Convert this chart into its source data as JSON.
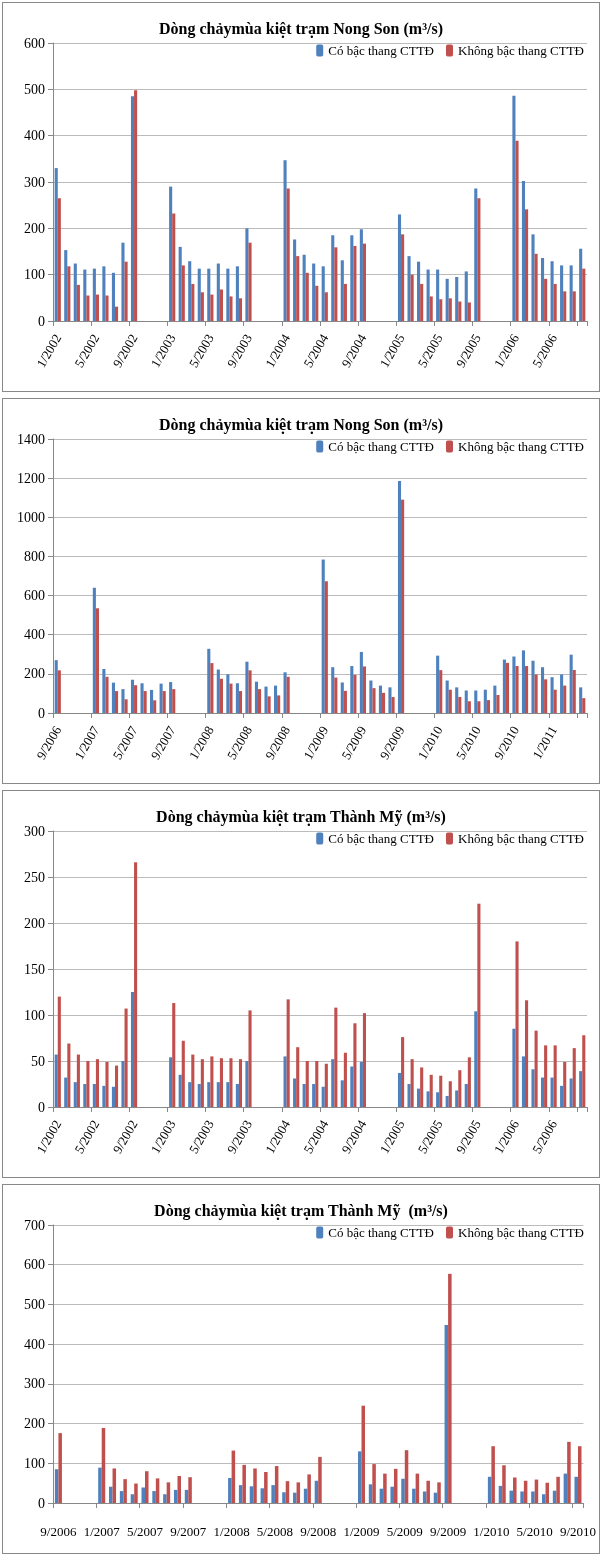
{
  "chart_data": [
    {
      "type": "bar",
      "title": "Dòng chảymùa kiệt trạm Nong Son (m³/s)",
      "legend": "top right",
      "grid": "y",
      "ylim": [
        0,
        600
      ],
      "yticks": [
        0,
        100,
        200,
        300,
        400,
        500,
        600
      ],
      "categories": [
        "1/2002",
        null,
        null,
        null,
        "5/2002",
        null,
        null,
        null,
        "9/2002",
        null,
        null,
        null,
        "1/2003",
        null,
        null,
        null,
        "5/2003",
        null,
        null,
        null,
        "9/2003",
        null,
        null,
        null,
        "1/2004",
        null,
        null,
        null,
        "5/2004",
        null,
        null,
        null,
        "9/2004",
        null,
        null,
        null,
        "1/2005",
        null,
        null,
        null,
        "5/2005",
        null,
        null,
        null,
        "9/2005",
        null,
        null,
        null,
        "1/2006",
        null,
        null,
        null,
        "5/2006",
        null,
        null,
        null
      ],
      "series": [
        {
          "name": "Có bậc thang CTTĐ",
          "color": "#4f81bd",
          "values": [
            330,
            153,
            124,
            111,
            113,
            118,
            104,
            169,
            485,
            null,
            null,
            null,
            290,
            160,
            129,
            113,
            113,
            124,
            113,
            118,
            200,
            null,
            null,
            null,
            347,
            176,
            143,
            124,
            118,
            185,
            131,
            185,
            198,
            null,
            null,
            null,
            230,
            140,
            128,
            111,
            111,
            91,
            95,
            107,
            286,
            null,
            null,
            null,
            486,
            302,
            187,
            136,
            129,
            120,
            120,
            156
          ]
        },
        {
          "name": "Không bậc thang CTTĐ",
          "color": "#c0504d",
          "values": [
            265,
            118,
            78,
            55,
            57,
            55,
            31,
            128,
            498,
            null,
            null,
            null,
            232,
            120,
            80,
            62,
            57,
            68,
            53,
            49,
            169,
            null,
            null,
            null,
            286,
            140,
            104,
            76,
            62,
            159,
            80,
            162,
            167,
            null,
            null,
            null,
            187,
            100,
            80,
            53,
            47,
            49,
            42,
            40,
            265,
            null,
            null,
            null,
            389,
            241,
            145,
            91,
            80,
            64,
            64,
            113
          ]
        }
      ]
    },
    {
      "type": "bar",
      "title": "Dòng chảymùa kiệt trạm Nong Son (m³/s)",
      "legend": "top right",
      "grid": "y",
      "ylim": [
        0,
        1400
      ],
      "yticks": [
        0,
        200,
        400,
        600,
        800,
        1000,
        1200,
        1400
      ],
      "categories": [
        "9/2006",
        null,
        null,
        null,
        "1/2007",
        null,
        null,
        null,
        "5/2007",
        null,
        null,
        null,
        "9/2007",
        null,
        null,
        null,
        "1/2008",
        null,
        null,
        null,
        "5/2008",
        null,
        null,
        null,
        "9/2008",
        null,
        null,
        null,
        "1/2009",
        null,
        null,
        null,
        "5/2009",
        null,
        null,
        null,
        "9/2009",
        null,
        null,
        null,
        "1/2010",
        null,
        null,
        null,
        "5/2010",
        null,
        null,
        null,
        "9/2010",
        null,
        null,
        null,
        "1/2011",
        null,
        null,
        null
      ],
      "series": [
        {
          "name": "Có bậc thang CTTĐ",
          "color": "#4f81bd",
          "values": [
            270,
            null,
            null,
            null,
            640,
            225,
            155,
            122,
            170,
            152,
            118,
            150,
            158,
            null,
            null,
            null,
            328,
            222,
            198,
            152,
            262,
            160,
            135,
            140,
            208,
            null,
            null,
            null,
            784,
            234,
            156,
            240,
            312,
            166,
            140,
            131,
            1185,
            null,
            null,
            null,
            293,
            166,
            131,
            115,
            115,
            119,
            140,
            273,
            289,
            320,
            267,
            234,
            183,
            197,
            298,
            131
          ]
        },
        {
          "name": "Không bậc thang CTTĐ",
          "color": "#c0504d",
          "values": [
            218,
            null,
            null,
            null,
            535,
            185,
            112,
            70,
            142,
            112,
            65,
            112,
            122,
            null,
            null,
            null,
            255,
            175,
            150,
            112,
            218,
            122,
            85,
            90,
            185,
            null,
            null,
            null,
            673,
            181,
            113,
            195,
            238,
            127,
            103,
            82,
            1090,
            null,
            null,
            null,
            219,
            119,
            82,
            60,
            60,
            66,
            92,
            256,
            240,
            240,
            197,
            172,
            119,
            140,
            220,
            76
          ]
        }
      ]
    },
    {
      "type": "bar",
      "title": "Dòng chảymùa kiệt trạm Thành Mỹ (m³/s)",
      "legend": "top right",
      "grid": "y",
      "ylim": [
        0,
        300
      ],
      "yticks": [
        0,
        50,
        100,
        150,
        200,
        250,
        300
      ],
      "categories": [
        "1/2002",
        null,
        null,
        null,
        "5/2002",
        null,
        null,
        null,
        "9/2002",
        null,
        null,
        null,
        "1/2003",
        null,
        null,
        null,
        "5/2003",
        null,
        null,
        null,
        "9/2003",
        null,
        null,
        null,
        "1/2004",
        null,
        null,
        null,
        "5/2004",
        null,
        null,
        null,
        "9/2004",
        null,
        null,
        null,
        "1/2005",
        null,
        null,
        null,
        "5/2005",
        null,
        null,
        null,
        "9/2005",
        null,
        null,
        null,
        "1/2006",
        null,
        null,
        null,
        "5/2006",
        null,
        null,
        null
      ],
      "series": [
        {
          "name": "Có bậc thang CTTĐ",
          "color": "#4f81bd",
          "values": [
            57,
            32,
            27,
            25,
            25,
            23,
            22,
            50,
            125,
            null,
            null,
            null,
            54,
            35,
            27,
            25,
            27,
            27,
            27,
            25,
            50,
            null,
            null,
            null,
            55,
            31,
            25,
            25,
            22,
            52,
            29,
            44,
            49,
            null,
            null,
            null,
            37,
            25,
            20,
            17,
            16,
            12,
            18,
            25,
            104,
            null,
            null,
            null,
            85,
            55,
            41,
            32,
            32,
            23,
            31,
            39
          ]
        },
        {
          "name": "Không bậc thang CTTĐ",
          "color": "#c0504d",
          "values": [
            120,
            69,
            57,
            50,
            52,
            49,
            45,
            107,
            266,
            null,
            null,
            null,
            113,
            72,
            57,
            52,
            55,
            53,
            53,
            52,
            105,
            null,
            null,
            null,
            117,
            65,
            50,
            50,
            47,
            108,
            59,
            91,
            102,
            null,
            null,
            null,
            76,
            52,
            43,
            35,
            34,
            28,
            40,
            54,
            221,
            null,
            null,
            null,
            180,
            116,
            83,
            67,
            67,
            49,
            64,
            78
          ]
        }
      ]
    },
    {
      "type": "bar",
      "title": "Dòng chảymùa kiệt trạm Thành Mỹ  (m³/s)",
      "legend": "top right",
      "grid": "y",
      "ylim": [
        0,
        700
      ],
      "yticks": [
        0,
        100,
        200,
        300,
        400,
        500,
        600,
        700
      ],
      "categories": [
        "9/2006",
        null,
        null,
        null,
        "1/2007",
        null,
        null,
        null,
        "5/2007",
        null,
        null,
        null,
        "9/2007",
        null,
        null,
        null,
        "1/2008",
        null,
        null,
        null,
        "5/2008",
        null,
        null,
        null,
        "9/2008",
        null,
        null,
        null,
        "1/2009",
        null,
        null,
        null,
        "5/2009",
        null,
        null,
        null,
        "9/2009",
        null,
        null,
        null,
        "1/2010",
        null,
        null,
        null,
        "5/2010",
        null,
        null,
        null,
        "9/2010"
      ],
      "series": [
        {
          "name": "Có bậc thang CTTĐ",
          "color": "#4f81bd",
          "values": [
            85,
            null,
            null,
            null,
            89,
            41,
            30,
            22,
            39,
            30,
            22,
            33,
            33,
            null,
            null,
            null,
            63,
            45,
            42,
            37,
            45,
            27,
            26,
            36,
            56,
            null,
            null,
            null,
            130,
            47,
            36,
            41,
            61,
            36,
            29,
            26,
            448,
            null,
            null,
            null,
            66,
            43,
            31,
            29,
            29,
            22,
            31,
            74,
            66
          ]
        },
        {
          "name": "Không bậc thang CTTĐ",
          "color": "#c0504d",
          "values": [
            176,
            null,
            null,
            null,
            189,
            87,
            60,
            49,
            80,
            62,
            52,
            68,
            65,
            null,
            null,
            null,
            132,
            96,
            87,
            78,
            93,
            55,
            52,
            72,
            116,
            null,
            null,
            null,
            245,
            98,
            74,
            86,
            133,
            74,
            56,
            52,
            577,
            null,
            null,
            null,
            143,
            95,
            64,
            56,
            59,
            51,
            66,
            154,
            143
          ]
        }
      ]
    }
  ]
}
